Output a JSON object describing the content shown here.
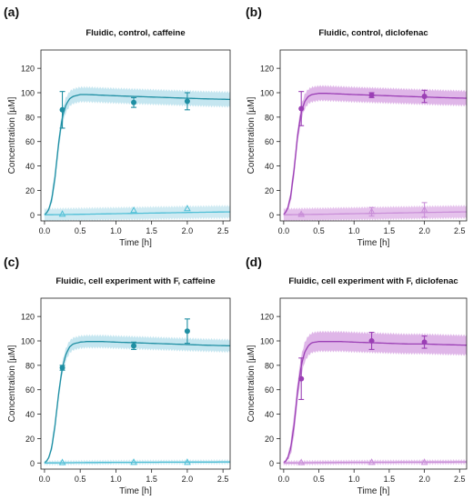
{
  "colors": {
    "teal": "#1f8fa3",
    "teal_band": "#bfe3ee",
    "teal_light": "#4fbfd6",
    "purple": "#9b3fb5",
    "purple_band": "#dcaee6",
    "purple_light": "#c98fd8"
  },
  "chart_data": [
    {
      "panel_label": "(a)",
      "type": "line",
      "title": "Fluidic, control, caffeine",
      "xlabel": "Time [h]",
      "ylabel": "Concentration [µM]",
      "xlim": [
        -0.05,
        2.6
      ],
      "ylim": [
        -5,
        135
      ],
      "xticks": [
        "0.0",
        "0.5",
        "1.0",
        "1.5",
        "2.0",
        "2.5"
      ],
      "yticks": [
        "0",
        "20",
        "40",
        "60",
        "80",
        "100",
        "120"
      ],
      "grid": false,
      "color": "teal",
      "series": [
        {
          "role": "upper",
          "band_half_width": 6,
          "x": [
            0,
            0.05,
            0.1,
            0.15,
            0.2,
            0.25,
            0.3,
            0.35,
            0.4,
            0.5,
            0.6,
            0.8,
            1.0,
            1.25,
            1.5,
            1.75,
            2.0,
            2.25,
            2.6
          ],
          "y": [
            0,
            3,
            12,
            32,
            60,
            80,
            90,
            95,
            97,
            98.5,
            98.5,
            98,
            97.5,
            97,
            96.5,
            96,
            95.5,
            95,
            94.5
          ],
          "points": [
            {
              "x": 0.25,
              "y": 86,
              "err": 15
            },
            {
              "x": 1.25,
              "y": 92,
              "err": 4
            },
            {
              "x": 2.0,
              "y": 93,
              "err": 7
            }
          ]
        },
        {
          "role": "lower",
          "band_half_width": 5,
          "x": [
            0,
            0.5,
            1.0,
            1.5,
            2.0,
            2.6
          ],
          "y": [
            0,
            0.4,
            0.9,
            1.4,
            1.9,
            2.4
          ],
          "points": [
            {
              "x": 0.25,
              "y": 0.5,
              "err": 0
            },
            {
              "x": 1.25,
              "y": 3.5,
              "err": 0
            },
            {
              "x": 2.0,
              "y": 5,
              "err": 0
            }
          ]
        }
      ]
    },
    {
      "panel_label": "(b)",
      "type": "line",
      "title": "Fluidic, control, diclofenac",
      "xlabel": "Time [h]",
      "ylabel": "Concentration [µM]",
      "xlim": [
        -0.05,
        2.6
      ],
      "ylim": [
        -5,
        135
      ],
      "xticks": [
        "0.0",
        "0.5",
        "1.0",
        "1.5",
        "2.0",
        "2.5"
      ],
      "yticks": [
        "0",
        "20",
        "40",
        "60",
        "80",
        "100",
        "120"
      ],
      "grid": false,
      "color": "purple",
      "series": [
        {
          "role": "upper",
          "band_half_width": 6,
          "x": [
            0,
            0.05,
            0.1,
            0.15,
            0.2,
            0.25,
            0.3,
            0.35,
            0.4,
            0.5,
            0.6,
            0.8,
            1.0,
            1.25,
            1.5,
            1.75,
            2.0,
            2.25,
            2.6
          ],
          "y": [
            0,
            4,
            15,
            38,
            66,
            84,
            93,
            97,
            98.5,
            99.5,
            99.5,
            99,
            98.5,
            98,
            97.5,
            97,
            96.5,
            96,
            95.5
          ],
          "points": [
            {
              "x": 0.25,
              "y": 87,
              "err": 14
            },
            {
              "x": 1.25,
              "y": 98,
              "err": 2
            },
            {
              "x": 2.0,
              "y": 97,
              "err": 5
            }
          ]
        },
        {
          "role": "lower",
          "band_half_width": 5,
          "x": [
            0,
            0.5,
            1.0,
            1.5,
            2.0,
            2.6
          ],
          "y": [
            0,
            0.4,
            0.9,
            1.4,
            1.9,
            2.4
          ],
          "points": [
            {
              "x": 0.25,
              "y": 0.3,
              "err": 0.6
            },
            {
              "x": 1.25,
              "y": 2.5,
              "err": 3.5
            },
            {
              "x": 2.0,
              "y": 4,
              "err": 6
            }
          ]
        }
      ]
    },
    {
      "panel_label": "(c)",
      "type": "line",
      "title": "Fluidic, cell experiment with F, caffeine",
      "xlabel": "Time [h]",
      "ylabel": "Concentration [µM]",
      "xlim": [
        -0.05,
        2.6
      ],
      "ylim": [
        -5,
        135
      ],
      "xticks": [
        "0.0",
        "0.5",
        "1.0",
        "1.5",
        "2.0",
        "2.5"
      ],
      "yticks": [
        "0",
        "20",
        "40",
        "60",
        "80",
        "100",
        "120"
      ],
      "grid": false,
      "color": "teal",
      "series": [
        {
          "role": "upper",
          "band_half_width": 5,
          "x": [
            0,
            0.05,
            0.1,
            0.15,
            0.2,
            0.25,
            0.3,
            0.35,
            0.4,
            0.5,
            0.6,
            0.8,
            1.0,
            1.25,
            1.5,
            1.75,
            2.0,
            2.25,
            2.6
          ],
          "y": [
            0,
            3,
            12,
            32,
            58,
            78,
            89,
            95,
            97.5,
            99,
            99.5,
            99.5,
            99,
            98.5,
            98,
            97.5,
            97,
            96.5,
            96
          ],
          "points": [
            {
              "x": 0.25,
              "y": 78,
              "err": 2
            },
            {
              "x": 1.25,
              "y": 96,
              "err": 3
            },
            {
              "x": 2.0,
              "y": 108,
              "err": 10
            }
          ]
        },
        {
          "role": "lower",
          "band_half_width": 1.5,
          "x": [
            0,
            0.5,
            1.0,
            1.5,
            2.0,
            2.6
          ],
          "y": [
            0,
            0.3,
            0.5,
            0.6,
            0.7,
            0.8
          ],
          "points": [
            {
              "x": 0.25,
              "y": 0.3,
              "err": 0
            },
            {
              "x": 1.25,
              "y": 0.5,
              "err": 0
            },
            {
              "x": 2.0,
              "y": 0.5,
              "err": 0
            }
          ]
        }
      ]
    },
    {
      "panel_label": "(d)",
      "type": "line",
      "title": "Fluidic, cell experiment with F, diclofenac",
      "xlabel": "Time [h]",
      "ylabel": "Concentration [µM]",
      "xlim": [
        -0.05,
        2.6
      ],
      "ylim": [
        -5,
        135
      ],
      "xticks": [
        "0.0",
        "0.5",
        "1.0",
        "1.5",
        "2.0",
        "2.5"
      ],
      "yticks": [
        "0",
        "20",
        "40",
        "60",
        "80",
        "100",
        "120"
      ],
      "grid": false,
      "color": "purple",
      "series": [
        {
          "role": "upper",
          "band_half_width": 8,
          "x": [
            0,
            0.05,
            0.1,
            0.15,
            0.2,
            0.25,
            0.3,
            0.35,
            0.4,
            0.5,
            0.6,
            0.8,
            1.0,
            1.25,
            1.5,
            1.75,
            2.0,
            2.25,
            2.6
          ],
          "y": [
            0,
            3,
            12,
            32,
            60,
            80,
            91,
            96,
            98.5,
            99.5,
            99.5,
            99.5,
            99,
            98.5,
            98,
            97.5,
            97.5,
            97,
            96.5
          ],
          "points": [
            {
              "x": 0.25,
              "y": 69,
              "err": 17
            },
            {
              "x": 1.25,
              "y": 100,
              "err": 7
            },
            {
              "x": 2.0,
              "y": 99,
              "err": 5
            }
          ]
        },
        {
          "role": "lower",
          "band_half_width": 1.5,
          "x": [
            0,
            0.5,
            1.0,
            1.5,
            2.0,
            2.6
          ],
          "y": [
            0,
            0.3,
            0.5,
            0.6,
            0.7,
            0.8
          ],
          "points": [
            {
              "x": 0.25,
              "y": 0.3,
              "err": 0
            },
            {
              "x": 1.25,
              "y": 0.5,
              "err": 0
            },
            {
              "x": 2.0,
              "y": 0.5,
              "err": 0
            }
          ]
        }
      ]
    }
  ]
}
